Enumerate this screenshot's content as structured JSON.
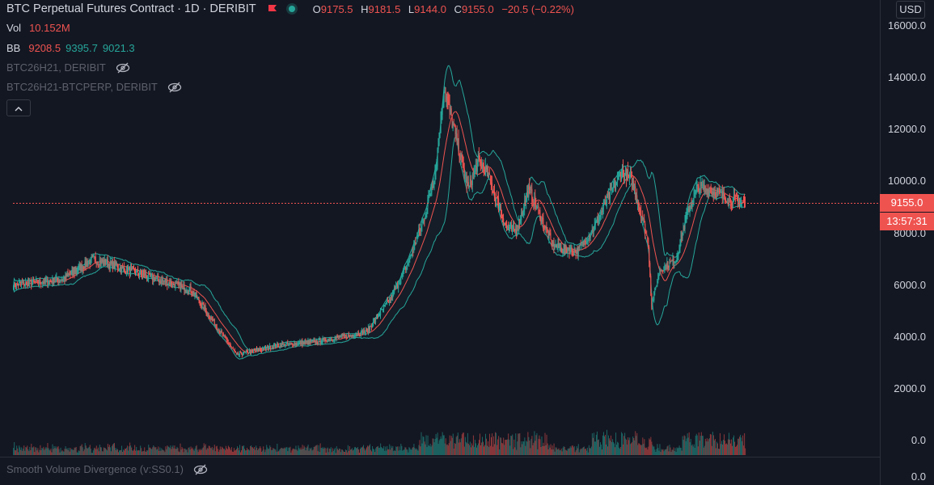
{
  "header": {
    "title": "BTC Perpetual Futures Contract · 1D · DERIBIT",
    "ohlc": [
      {
        "k": "O",
        "v": "9175.5"
      },
      {
        "k": "H",
        "v": "9181.5"
      },
      {
        "k": "L",
        "v": "9144.0"
      },
      {
        "k": "C",
        "v": "9155.0"
      }
    ],
    "change": "−20.5 (−0.22%)"
  },
  "indicators": {
    "vol": {
      "label": "Vol",
      "value": "10.152M"
    },
    "bb": {
      "label": "BB",
      "basis": "9208.5",
      "upper": "9395.7",
      "lower": "9021.3"
    },
    "symbol1": "BTC26H21, DERIBIT",
    "symbol2": "BTC26H21-BTCPERP, DERIBIT",
    "svd": "Smooth Volume Divergence (v:SS0.1)"
  },
  "axis": {
    "currency": "USD",
    "ticks": [
      "16000.0",
      "14000.0",
      "12000.0",
      "10000.0",
      "8000.0",
      "6000.0",
      "4000.0",
      "2000.0",
      "0.0"
    ],
    "lower_tick": "0.0",
    "last_price": "9155.0",
    "countdown": "13:57:31"
  },
  "colors": {
    "up": "#26a69a",
    "down": "#ef5350",
    "bb_band": "#26a69a",
    "bb_basis": "#ef5350",
    "background": "#131722"
  },
  "icons": [
    "flag-icon",
    "status-dot-icon",
    "eye-crossed-icon",
    "chevron-up-icon"
  ],
  "chart_data": {
    "type": "candlestick",
    "interval": "1D",
    "ylim": [
      0,
      16000
    ],
    "series": [
      {
        "name": "price",
        "segments": [
          [
            60,
            6200
          ],
          [
            40,
            7000
          ],
          [
            60,
            6400
          ],
          [
            60,
            5800
          ],
          [
            55,
            3300
          ],
          [
            55,
            3700
          ],
          [
            40,
            3800
          ],
          [
            35,
            4000
          ],
          [
            30,
            4200
          ],
          [
            30,
            5500
          ],
          [
            20,
            6800
          ],
          [
            20,
            8500
          ],
          [
            15,
            10500
          ],
          [
            10,
            13600
          ],
          [
            20,
            11000
          ],
          [
            10,
            9700
          ],
          [
            12,
            10800
          ],
          [
            10,
            10400
          ],
          [
            25,
            8200
          ],
          [
            12,
            8100
          ],
          [
            15,
            9700
          ],
          [
            30,
            7500
          ],
          [
            30,
            7300
          ],
          [
            20,
            8200
          ],
          [
            15,
            9200
          ],
          [
            20,
            10400
          ],
          [
            12,
            10000
          ],
          [
            12,
            8700
          ],
          [
            8,
            7600
          ],
          [
            4,
            5200
          ],
          [
            10,
            6600
          ],
          [
            20,
            7000
          ],
          [
            15,
            8900
          ],
          [
            12,
            9800
          ],
          [
            20,
            9600
          ],
          [
            20,
            9300
          ],
          [
            18,
            9155
          ]
        ]
      }
    ]
  }
}
